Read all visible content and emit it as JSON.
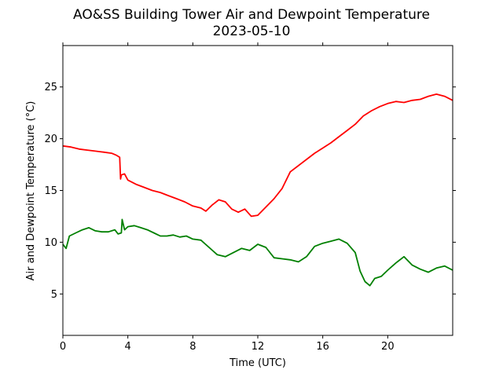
{
  "chart_data": {
    "type": "line",
    "title": "AO&SS Building Tower Air and Dewpoint Temperature",
    "subtitle": "2023-05-10",
    "xlabel": "Time (UTC)",
    "ylabel": "Air and Dewpoint Temperature (°C)",
    "xlim": [
      0,
      24
    ],
    "ylim": [
      1,
      29
    ],
    "xticks": [
      0,
      4,
      8,
      12,
      16,
      20
    ],
    "yticks": [
      5,
      10,
      15,
      20,
      25
    ],
    "grid": false,
    "series": [
      {
        "color": "#ff0000",
        "x": [
          0,
          0.5,
          1,
          1.5,
          2,
          2.5,
          3,
          3.3,
          3.5,
          3.55,
          3.6,
          3.8,
          4,
          4.5,
          5,
          5.5,
          6,
          6.5,
          7,
          7.5,
          8,
          8.5,
          8.8,
          9.2,
          9.6,
          10,
          10.4,
          10.8,
          11.2,
          11.6,
          12,
          12.5,
          13,
          13.5,
          14,
          14.5,
          15,
          15.5,
          16,
          16.5,
          17,
          17.5,
          18,
          18.5,
          19,
          19.5,
          20,
          20.5,
          21,
          21.5,
          22,
          22.5,
          23,
          23.5,
          24
        ],
        "y": [
          19.3,
          19.2,
          19.0,
          18.9,
          18.8,
          18.7,
          18.6,
          18.4,
          18.2,
          16.1,
          16.5,
          16.6,
          16.0,
          15.6,
          15.3,
          15.0,
          14.8,
          14.5,
          14.2,
          13.9,
          13.5,
          13.3,
          13.0,
          13.6,
          14.1,
          13.9,
          13.2,
          12.9,
          13.2,
          12.5,
          12.6,
          13.4,
          14.2,
          15.2,
          16.8,
          17.4,
          18.0,
          18.6,
          19.1,
          19.6,
          20.2,
          20.8,
          21.4,
          22.2,
          22.7,
          23.1,
          23.4,
          23.6,
          23.5,
          23.7,
          23.8,
          24.1,
          24.3,
          24.1,
          23.7
        ]
      },
      {
        "color": "#008000",
        "x": [
          0,
          0.2,
          0.4,
          0.8,
          1.2,
          1.6,
          2,
          2.4,
          2.8,
          3.2,
          3.4,
          3.6,
          3.65,
          3.8,
          4,
          4.4,
          4.8,
          5.2,
          5.6,
          6,
          6.4,
          6.8,
          7.2,
          7.6,
          8,
          8.5,
          9,
          9.5,
          10,
          10.5,
          11,
          11.5,
          12,
          12.5,
          13,
          13.5,
          14,
          14.5,
          15,
          15.5,
          16,
          16.5,
          17,
          17.5,
          18,
          18.3,
          18.6,
          18.9,
          19.2,
          19.6,
          20,
          20.5,
          21,
          21.5,
          22,
          22.5,
          23,
          23.5,
          24
        ],
        "y": [
          9.8,
          9.4,
          10.6,
          10.9,
          11.2,
          11.4,
          11.1,
          11.0,
          11.0,
          11.2,
          10.8,
          10.9,
          12.2,
          11.2,
          11.5,
          11.6,
          11.4,
          11.2,
          10.9,
          10.6,
          10.6,
          10.7,
          10.5,
          10.6,
          10.3,
          10.2,
          9.5,
          8.8,
          8.6,
          9.0,
          9.4,
          9.2,
          9.8,
          9.5,
          8.5,
          8.4,
          8.3,
          8.1,
          8.6,
          9.6,
          9.9,
          10.1,
          10.3,
          9.9,
          9.0,
          7.2,
          6.2,
          5.8,
          6.5,
          6.7,
          7.3,
          8.0,
          8.6,
          7.8,
          7.4,
          7.1,
          7.5,
          7.7,
          7.3
        ]
      }
    ]
  }
}
